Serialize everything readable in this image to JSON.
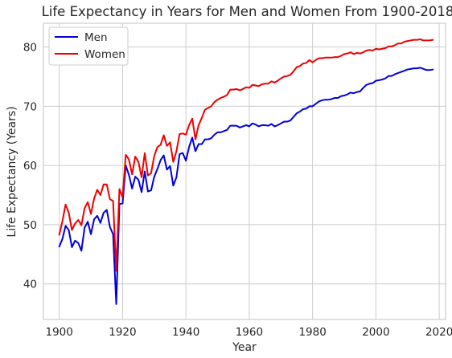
{
  "chart_data": {
    "type": "line",
    "title": "Life Expectancy in Years for Men and Women From 1900-2018",
    "xlabel": "Year",
    "ylabel": "Life Expectancy (Years)",
    "xlim": [
      1895,
      2022
    ],
    "ylim": [
      34,
      84
    ],
    "xticks": [
      1900,
      1920,
      1940,
      1960,
      1980,
      2000,
      2020
    ],
    "yticks": [
      40,
      50,
      60,
      70,
      80
    ],
    "grid": true,
    "legend": "top-left",
    "x": [
      1900,
      1901,
      1902,
      1903,
      1904,
      1905,
      1906,
      1907,
      1908,
      1909,
      1910,
      1911,
      1912,
      1913,
      1914,
      1915,
      1916,
      1917,
      1918,
      1919,
      1920,
      1921,
      1922,
      1923,
      1924,
      1925,
      1926,
      1927,
      1928,
      1929,
      1930,
      1931,
      1932,
      1933,
      1934,
      1935,
      1936,
      1937,
      1938,
      1939,
      1940,
      1941,
      1942,
      1943,
      1944,
      1945,
      1946,
      1947,
      1948,
      1949,
      1950,
      1951,
      1952,
      1953,
      1954,
      1955,
      1956,
      1957,
      1958,
      1959,
      1960,
      1961,
      1962,
      1963,
      1964,
      1965,
      1966,
      1967,
      1968,
      1969,
      1970,
      1971,
      1972,
      1973,
      1974,
      1975,
      1976,
      1977,
      1978,
      1979,
      1980,
      1981,
      1982,
      1983,
      1984,
      1985,
      1986,
      1987,
      1988,
      1989,
      1990,
      1991,
      1992,
      1993,
      1994,
      1995,
      1996,
      1997,
      1998,
      1999,
      2000,
      2001,
      2002,
      2003,
      2004,
      2005,
      2006,
      2007,
      2008,
      2009,
      2010,
      2011,
      2012,
      2013,
      2014,
      2015,
      2016,
      2017,
      2018
    ],
    "series": [
      {
        "name": "Men",
        "color": "#0000dd",
        "values": [
          46.3,
          47.6,
          49.8,
          49.1,
          46.2,
          47.3,
          46.9,
          45.6,
          49.5,
          50.5,
          48.4,
          50.9,
          51.5,
          50.3,
          52.0,
          52.5,
          49.6,
          48.4,
          36.6,
          53.5,
          53.6,
          60.0,
          58.4,
          56.1,
          58.1,
          57.6,
          55.5,
          59.0,
          55.6,
          55.8,
          58.1,
          59.4,
          60.9,
          61.7,
          59.3,
          59.9,
          56.6,
          58.0,
          61.9,
          62.1,
          60.8,
          63.1,
          64.7,
          62.4,
          63.6,
          63.6,
          64.4,
          64.4,
          64.6,
          65.2,
          65.6,
          65.6,
          65.8,
          66.0,
          66.7,
          66.7,
          66.7,
          66.4,
          66.6,
          66.8,
          66.6,
          67.1,
          66.9,
          66.6,
          66.8,
          66.8,
          66.7,
          67.0,
          66.6,
          66.8,
          67.1,
          67.4,
          67.4,
          67.6,
          68.2,
          68.8,
          69.1,
          69.5,
          69.6,
          70.0,
          70.0,
          70.4,
          70.8,
          71.0,
          71.1,
          71.1,
          71.2,
          71.4,
          71.4,
          71.7,
          71.8,
          72.0,
          72.3,
          72.2,
          72.4,
          72.5,
          73.1,
          73.6,
          73.8,
          73.9,
          74.3,
          74.4,
          74.5,
          74.7,
          75.1,
          75.1,
          75.4,
          75.6,
          75.8,
          76.0,
          76.2,
          76.3,
          76.4,
          76.4,
          76.5,
          76.3,
          76.1,
          76.1,
          76.2
        ]
      },
      {
        "name": "Women",
        "color": "#ee0000",
        "values": [
          48.3,
          50.6,
          53.4,
          52.0,
          49.1,
          50.2,
          50.8,
          49.9,
          52.8,
          53.8,
          51.8,
          54.4,
          55.9,
          55.0,
          56.8,
          56.8,
          54.3,
          54.0,
          42.2,
          56.0,
          54.6,
          61.8,
          61.0,
          58.5,
          61.5,
          60.6,
          58.0,
          62.1,
          58.3,
          58.7,
          61.6,
          63.1,
          63.5,
          65.1,
          63.3,
          63.9,
          60.6,
          62.4,
          65.3,
          65.4,
          65.2,
          66.8,
          67.9,
          64.4,
          66.8,
          68.0,
          69.4,
          69.7,
          70.0,
          70.7,
          71.1,
          71.4,
          71.6,
          71.9,
          72.8,
          72.8,
          72.9,
          72.7,
          72.9,
          73.2,
          73.1,
          73.6,
          73.5,
          73.4,
          73.7,
          73.8,
          73.8,
          74.2,
          74.0,
          74.3,
          74.7,
          75.0,
          75.1,
          75.3,
          75.9,
          76.6,
          76.8,
          77.2,
          77.3,
          77.8,
          77.4,
          77.8,
          78.1,
          78.1,
          78.2,
          78.2,
          78.2,
          78.3,
          78.3,
          78.5,
          78.8,
          78.9,
          79.1,
          78.8,
          79.0,
          78.9,
          79.1,
          79.4,
          79.5,
          79.4,
          79.7,
          79.6,
          79.7,
          79.8,
          80.1,
          80.1,
          80.3,
          80.6,
          80.6,
          80.9,
          81.0,
          81.1,
          81.2,
          81.2,
          81.3,
          81.1,
          81.1,
          81.1,
          81.2
        ]
      }
    ]
  }
}
